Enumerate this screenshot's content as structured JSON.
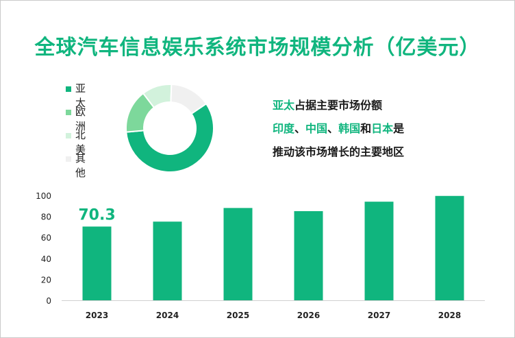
{
  "title": "全球汽车信息娱乐系统市场规模分析（亿美元）",
  "donut": {
    "legend": [
      {
        "label": "亚太",
        "color": "#10b57e",
        "share": 0.58
      },
      {
        "label": "欧洲",
        "color": "#7dd89b",
        "share": 0.16
      },
      {
        "label": "北美",
        "color": "#d2f2dc",
        "share": 0.11
      },
      {
        "label": "其他",
        "color": "#f0f0f0",
        "share": 0.15
      }
    ]
  },
  "annotation": {
    "line1": {
      "hl": "亚太",
      "rest": "占据主要市场份额"
    },
    "line2": {
      "hl1": "印度",
      "sep1": "、",
      "hl2": "中国",
      "sep2": "、",
      "hl3": "韩国",
      "and": "和",
      "hl4": "日本",
      "end": "是"
    },
    "line3": "推动该市场增长的主要地区"
  },
  "chart_data": {
    "type": "bar",
    "categories": [
      "2023",
      "2024",
      "2025",
      "2026",
      "2027",
      "2028"
    ],
    "values": [
      70.3,
      75,
      88,
      85,
      94,
      99.5
    ],
    "data_labels": [
      "70.3",
      "",
      "",
      "",
      "",
      ""
    ],
    "ylim": [
      0,
      100
    ],
    "yticks": [
      0,
      20,
      40,
      60,
      80,
      100
    ],
    "bar_color": "#10b57e",
    "label_color": "#10b57e",
    "title": "",
    "xlabel": "",
    "ylabel": ""
  }
}
